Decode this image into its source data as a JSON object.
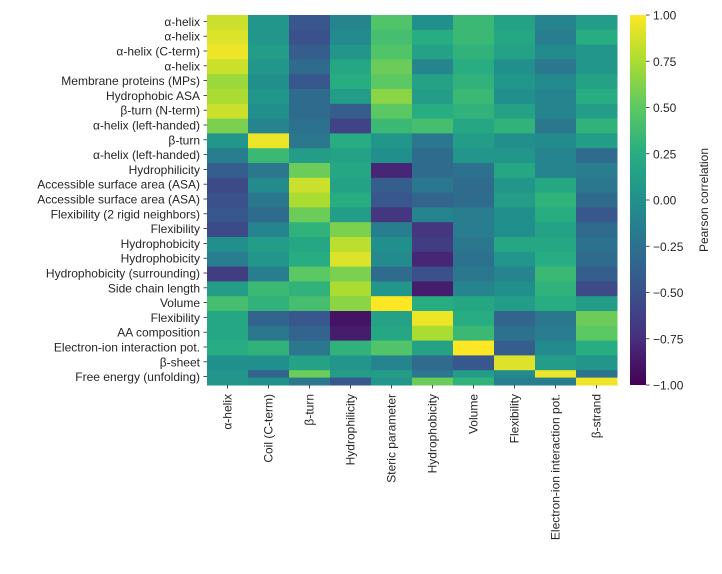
{
  "chart_data": {
    "type": "heatmap",
    "rows": [
      "α-helix",
      "α-helix",
      "α-helix (C-term)",
      "α-helix",
      "Membrane proteins (MPs)",
      "Hydrophobic ASA",
      "β-turn (N-term)",
      "α-helix (left-handed)",
      "β-turn",
      "α-helix (left-handed)",
      "Hydrophilicity",
      "Accessible surface area (ASA)",
      "Accessible surface area (ASA)",
      "Flexibility (2 rigid neighbors)",
      "Flexibility",
      "Hydrophobicity",
      "Hydrophobicity",
      "Hydrophobicity (surrounding)",
      "Side chain length",
      "Volume",
      "Flexibility",
      "AA composition",
      "Electron-ion interaction pot.",
      "β-sheet",
      "Free energy (unfolding)"
    ],
    "columns": [
      "α-helix",
      "Coil (C-term)",
      "β-turn",
      "Hydrophilicity",
      "Steric parameter",
      "Hydrophobicity",
      "Volume",
      "Flexibility",
      "Electron-ion interaction pot.",
      "β-strand"
    ],
    "colorbar": {
      "label": "Pearson correlation",
      "range": [
        -1,
        1
      ],
      "ticks": [
        "1.00",
        "0.75",
        "0.50",
        "0.25",
        "0.00",
        "−0.25",
        "−0.50",
        "−0.75",
        "−1.00"
      ],
      "tick_values": [
        1,
        0.75,
        0.5,
        0.25,
        0,
        -0.25,
        -0.5,
        -0.75,
        -1
      ],
      "colormap": "viridis"
    },
    "matrix_cell_rows": 50,
    "matrix": [
      [
        0.85,
        0.05,
        -0.45,
        -0.1,
        0.45,
        0.0,
        0.35,
        0.15,
        -0.1,
        0.1
      ],
      [
        0.85,
        0.05,
        -0.45,
        -0.1,
        0.45,
        0.0,
        0.35,
        0.15,
        -0.1,
        0.1
      ],
      [
        0.9,
        0.05,
        -0.5,
        -0.05,
        0.4,
        0.25,
        0.35,
        0.2,
        -0.15,
        0.25
      ],
      [
        0.9,
        0.05,
        -0.5,
        -0.05,
        0.4,
        0.25,
        0.35,
        0.2,
        -0.15,
        0.25
      ],
      [
        0.95,
        0.1,
        -0.4,
        0.05,
        0.45,
        0.15,
        0.3,
        0.15,
        -0.05,
        0.05
      ],
      [
        0.95,
        0.1,
        -0.4,
        0.05,
        0.45,
        0.15,
        0.3,
        0.15,
        -0.05,
        0.05
      ],
      [
        0.85,
        0.05,
        -0.3,
        0.2,
        0.55,
        -0.1,
        0.25,
        0.0,
        -0.2,
        0.05
      ],
      [
        0.85,
        0.05,
        -0.3,
        0.2,
        0.55,
        -0.1,
        0.25,
        0.0,
        -0.2,
        0.05
      ],
      [
        0.7,
        0.0,
        -0.45,
        0.25,
        0.5,
        0.15,
        0.3,
        0.05,
        -0.05,
        0.15
      ],
      [
        0.7,
        0.0,
        -0.45,
        0.25,
        0.5,
        0.15,
        0.3,
        0.05,
        -0.05,
        0.15
      ],
      [
        0.75,
        0.05,
        -0.3,
        0.1,
        0.65,
        0.1,
        0.35,
        0.0,
        -0.1,
        0.25
      ],
      [
        0.75,
        0.05,
        -0.3,
        0.1,
        0.65,
        0.1,
        0.35,
        0.0,
        -0.1,
        0.25
      ],
      [
        0.85,
        0.0,
        -0.3,
        -0.4,
        0.5,
        0.25,
        0.3,
        0.15,
        -0.1,
        0.1
      ],
      [
        0.85,
        0.0,
        -0.3,
        -0.4,
        0.5,
        0.25,
        0.3,
        0.15,
        -0.1,
        0.1
      ],
      [
        0.6,
        -0.1,
        -0.25,
        -0.6,
        0.35,
        0.4,
        0.2,
        0.3,
        -0.2,
        0.3
      ],
      [
        0.6,
        -0.1,
        -0.25,
        -0.6,
        0.35,
        0.4,
        0.2,
        0.3,
        -0.2,
        0.3
      ],
      [
        0.05,
        0.95,
        -0.2,
        0.25,
        0.05,
        -0.2,
        0.1,
        0.0,
        -0.05,
        0.1
      ],
      [
        0.05,
        0.95,
        -0.2,
        0.25,
        0.05,
        -0.2,
        0.1,
        0.0,
        -0.05,
        0.1
      ],
      [
        -0.15,
        0.35,
        0.1,
        0.15,
        0.0,
        -0.3,
        0.05,
        0.05,
        -0.1,
        -0.3
      ],
      [
        -0.15,
        0.35,
        0.1,
        0.15,
        0.0,
        -0.3,
        0.05,
        0.05,
        -0.1,
        -0.3
      ],
      [
        -0.4,
        -0.2,
        0.55,
        0.2,
        -0.8,
        -0.3,
        -0.25,
        0.2,
        -0.1,
        -0.15
      ],
      [
        -0.4,
        -0.2,
        0.55,
        0.2,
        -0.8,
        -0.3,
        -0.25,
        0.2,
        -0.1,
        -0.15
      ],
      [
        -0.55,
        -0.05,
        0.85,
        0.15,
        -0.4,
        -0.2,
        -0.3,
        0.05,
        0.2,
        -0.2
      ],
      [
        -0.55,
        -0.05,
        0.85,
        0.15,
        -0.4,
        -0.2,
        -0.3,
        0.05,
        0.2,
        -0.2
      ],
      [
        -0.5,
        -0.2,
        0.75,
        0.25,
        -0.45,
        -0.35,
        -0.3,
        0.1,
        0.3,
        -0.3
      ],
      [
        -0.5,
        -0.2,
        0.75,
        0.25,
        -0.45,
        -0.35,
        -0.3,
        0.1,
        0.3,
        -0.3
      ],
      [
        -0.45,
        -0.3,
        0.55,
        0.1,
        -0.7,
        -0.1,
        -0.15,
        0.0,
        0.25,
        -0.45
      ],
      [
        -0.45,
        -0.3,
        0.55,
        0.1,
        -0.7,
        -0.1,
        -0.15,
        0.0,
        0.25,
        -0.45
      ],
      [
        -0.55,
        -0.1,
        0.3,
        0.6,
        -0.15,
        -0.7,
        -0.15,
        0.0,
        0.15,
        -0.3
      ],
      [
        -0.55,
        -0.1,
        0.3,
        0.6,
        -0.15,
        -0.7,
        -0.15,
        0.0,
        0.15,
        -0.3
      ],
      [
        0.0,
        0.1,
        0.2,
        0.8,
        0.0,
        -0.65,
        -0.2,
        0.2,
        0.2,
        -0.25
      ],
      [
        0.0,
        0.1,
        0.2,
        0.8,
        0.0,
        -0.65,
        -0.2,
        0.2,
        0.2,
        -0.25
      ],
      [
        -0.15,
        0.05,
        0.25,
        0.9,
        -0.05,
        -0.8,
        -0.25,
        0.05,
        0.25,
        -0.3
      ],
      [
        -0.15,
        0.05,
        0.25,
        0.9,
        -0.05,
        -0.8,
        -0.25,
        0.05,
        0.25,
        -0.3
      ],
      [
        -0.65,
        -0.15,
        0.5,
        0.6,
        -0.3,
        -0.5,
        -0.2,
        -0.1,
        0.35,
        -0.4
      ],
      [
        -0.65,
        -0.15,
        0.5,
        0.6,
        -0.3,
        -0.5,
        -0.2,
        -0.1,
        0.35,
        -0.4
      ],
      [
        0.1,
        0.35,
        0.3,
        0.75,
        0.05,
        -0.85,
        -0.1,
        0.0,
        0.3,
        -0.55
      ],
      [
        0.1,
        0.35,
        0.3,
        0.75,
        0.05,
        -0.85,
        -0.1,
        0.0,
        0.3,
        -0.55
      ],
      [
        0.4,
        0.3,
        0.4,
        0.65,
        1.0,
        0.25,
        0.2,
        0.1,
        0.25,
        0.1
      ],
      [
        0.4,
        0.3,
        0.4,
        0.65,
        1.0,
        0.25,
        0.2,
        0.1,
        0.25,
        0.1
      ],
      [
        0.2,
        -0.35,
        -0.45,
        -0.9,
        0.15,
        0.95,
        0.25,
        -0.35,
        -0.2,
        0.55
      ],
      [
        0.2,
        -0.35,
        -0.45,
        -0.9,
        0.15,
        0.95,
        0.25,
        -0.35,
        -0.2,
        0.55
      ],
      [
        0.2,
        -0.2,
        -0.35,
        -0.85,
        0.2,
        0.75,
        0.35,
        -0.25,
        -0.15,
        0.5
      ],
      [
        0.2,
        -0.2,
        -0.35,
        -0.85,
        0.2,
        0.75,
        0.35,
        -0.25,
        -0.15,
        0.5
      ],
      [
        0.25,
        0.3,
        -0.2,
        0.3,
        0.45,
        0.15,
        1.0,
        -0.4,
        -0.05,
        0.25
      ],
      [
        0.25,
        0.3,
        -0.2,
        0.3,
        0.45,
        0.15,
        1.0,
        -0.4,
        -0.05,
        0.25
      ],
      [
        0.0,
        0.0,
        0.15,
        0.05,
        -0.1,
        -0.3,
        -0.45,
        0.9,
        0.1,
        0.05
      ],
      [
        0.0,
        0.0,
        0.15,
        0.05,
        -0.1,
        -0.3,
        -0.45,
        0.9,
        0.1,
        0.05
      ],
      [
        0.05,
        -0.35,
        0.55,
        0.1,
        0.1,
        -0.2,
        0.1,
        -0.05,
        0.95,
        -0.25
      ],
      [
        0.05,
        0.0,
        -0.2,
        -0.45,
        0.05,
        0.55,
        0.3,
        -0.15,
        -0.15,
        0.95
      ]
    ]
  }
}
